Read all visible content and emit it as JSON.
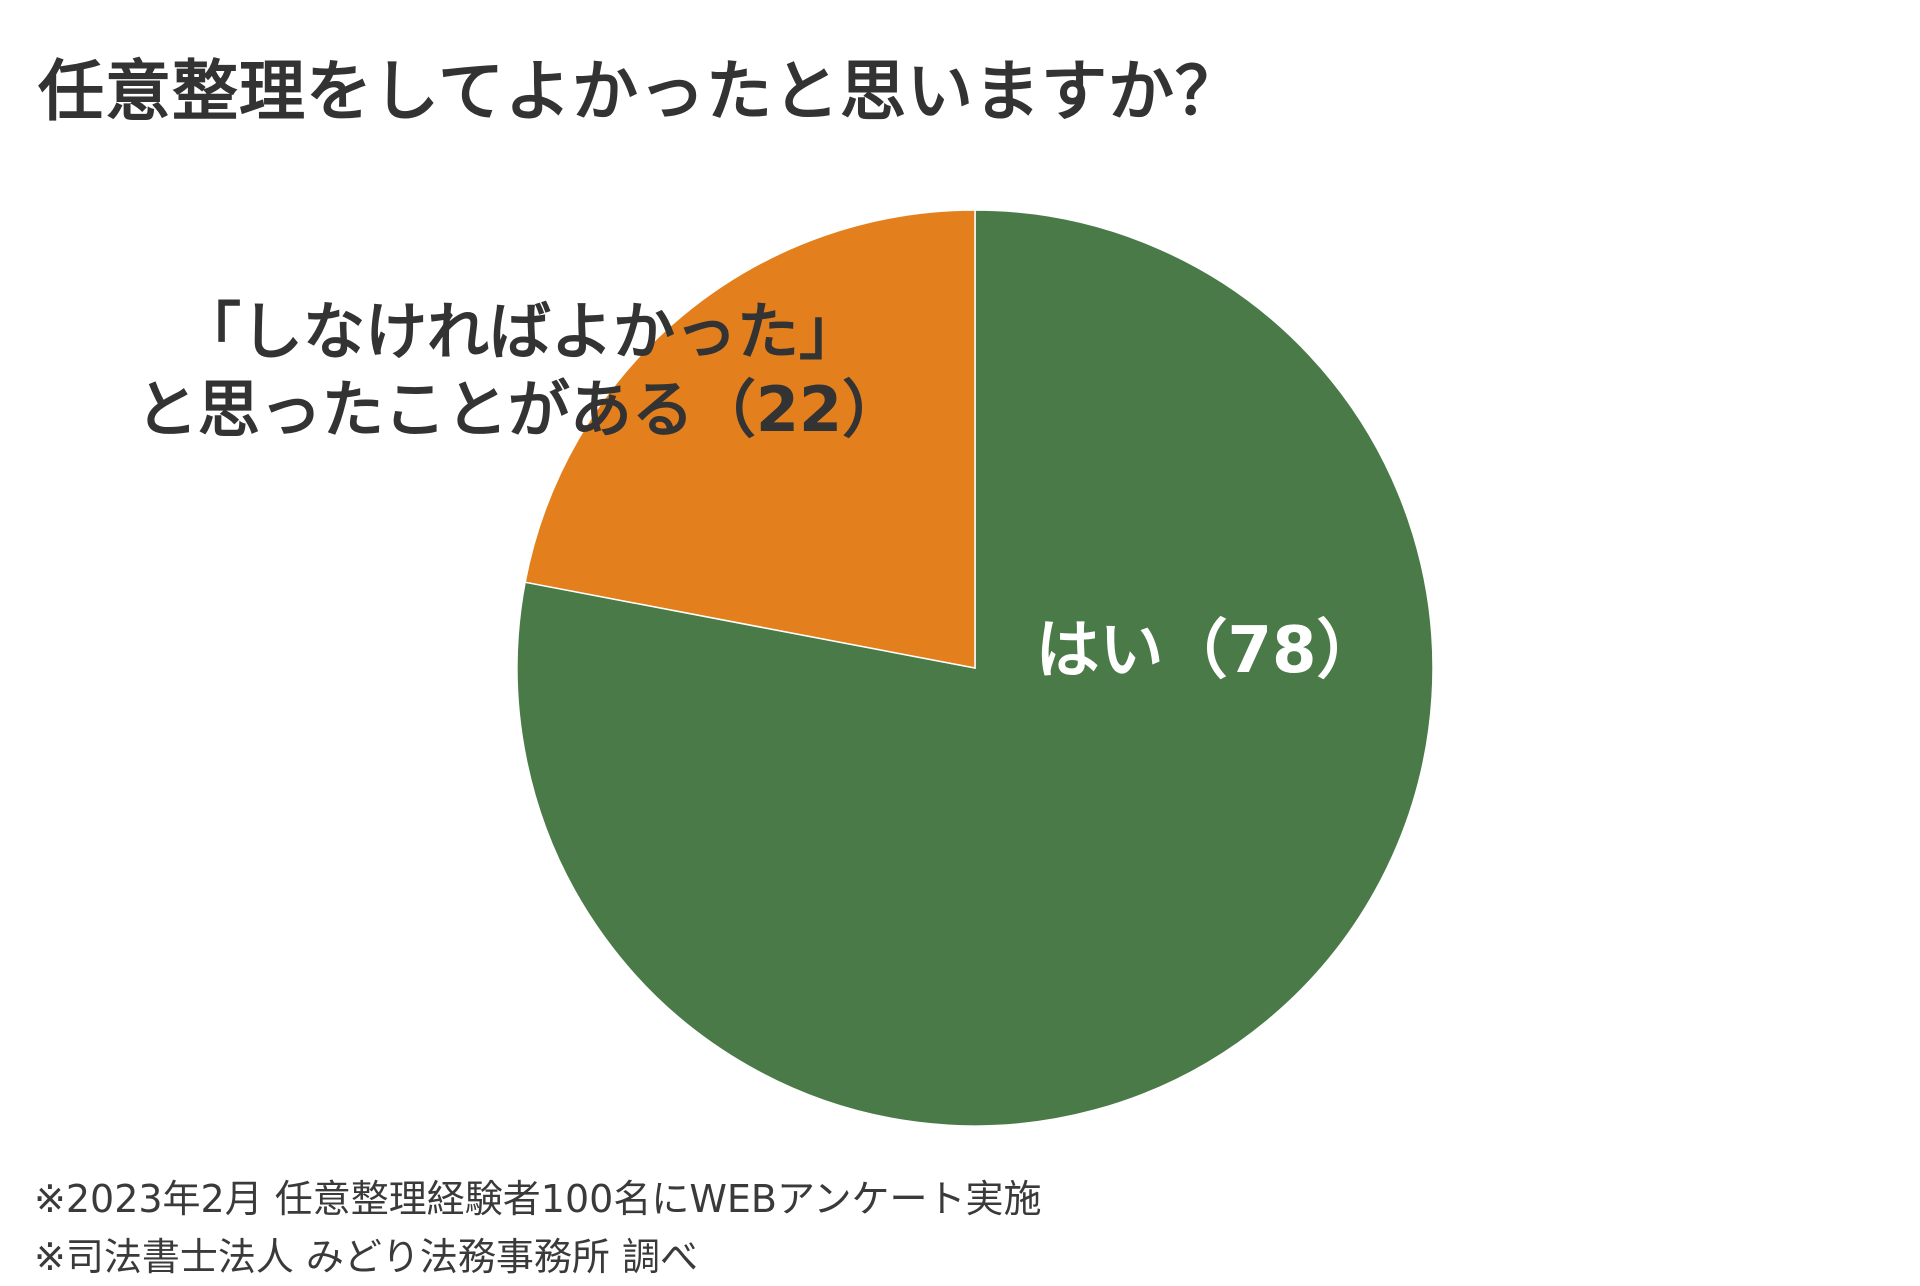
{
  "title": "任意整理をしてよかったと思いますか？",
  "chart_data": {
    "type": "pie",
    "title": "任意整理をしてよかったと思いますか？",
    "start_angle_deg": 0,
    "direction": "clockwise",
    "slices": [
      {
        "label": "はい（78）",
        "label_lines": [
          "はい（78）"
        ],
        "value": 78,
        "color": "#4a7a48",
        "label_color": "#ffffff"
      },
      {
        "label": "「しなければよかった」と思ったことがある（22）",
        "label_lines": [
          "「しなければよかった」",
          "と思ったことがある（22）"
        ],
        "value": 22,
        "color": "#e3801d",
        "label_color": "#333333"
      }
    ]
  },
  "footnotes": [
    "※2023年2月 任意整理経験者100名にWEBアンケート実施",
    "※司法書士法人 みどり法務事務所 調べ"
  ]
}
